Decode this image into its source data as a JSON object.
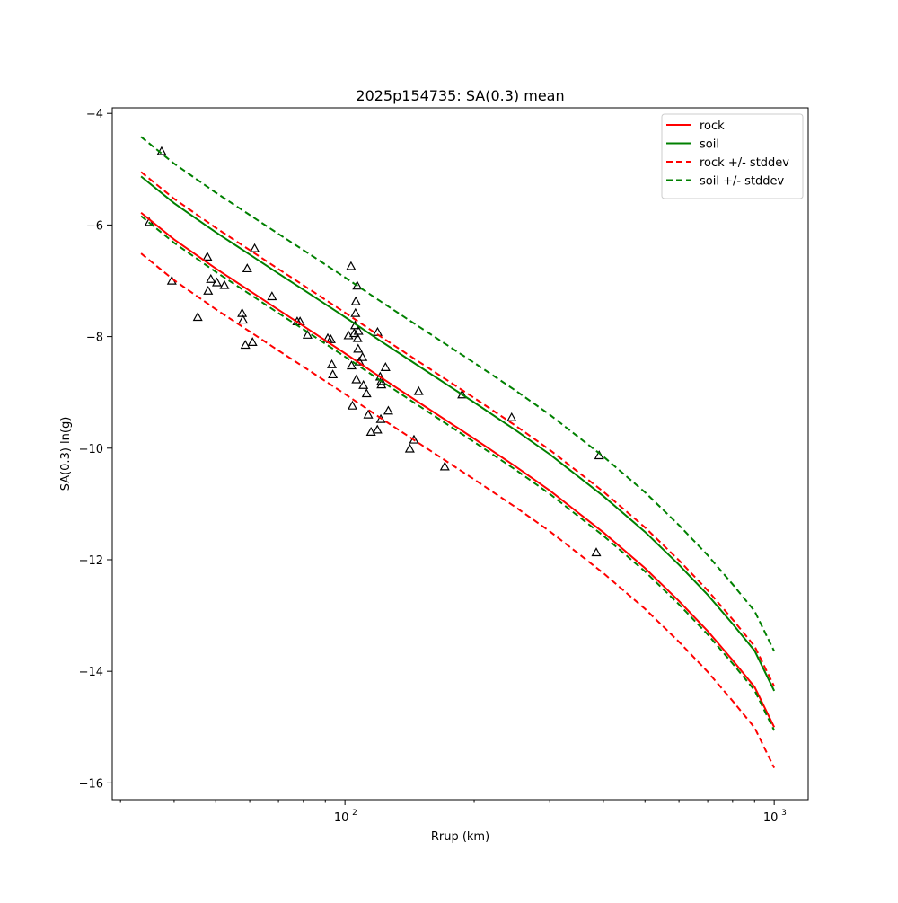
{
  "chart_data": {
    "type": "line",
    "title": "2025p154735: SA(0.3) mean",
    "xlabel": "Rrup (km)",
    "ylabel": "SA(0.3) ln(g)",
    "xscale": "log",
    "xlim": [
      28.7,
      1200
    ],
    "ylim": [
      -16.3,
      -3.9
    ],
    "x_ticks": [
      {
        "value": 100,
        "base": "10",
        "exp": "2"
      },
      {
        "value": 1000,
        "base": "10",
        "exp": "3"
      }
    ],
    "y_ticks": [
      -4,
      -6,
      -8,
      -10,
      -12,
      -14,
      -16
    ],
    "grid": false,
    "legend": "top-right",
    "series": [
      {
        "name": "rock",
        "color": "#ff0000",
        "style": "solid",
        "x": [
          33.5,
          40,
          50,
          60,
          70,
          80,
          100,
          120,
          150,
          200,
          250,
          300,
          400,
          500,
          600,
          700,
          800,
          900,
          1000
        ],
        "y": [
          -5.78,
          -6.26,
          -6.78,
          -7.18,
          -7.52,
          -7.81,
          -8.3,
          -8.71,
          -9.2,
          -9.83,
          -10.33,
          -10.76,
          -11.51,
          -12.15,
          -12.74,
          -13.28,
          -13.8,
          -14.28,
          -15.0
        ]
      },
      {
        "name": "soil",
        "color": "#008000",
        "style": "solid",
        "x": [
          33.5,
          40,
          50,
          60,
          70,
          80,
          100,
          120,
          150,
          200,
          250,
          300,
          400,
          500,
          600,
          700,
          800,
          900,
          1000
        ],
        "y": [
          -5.13,
          -5.61,
          -6.13,
          -6.53,
          -6.87,
          -7.16,
          -7.65,
          -8.06,
          -8.55,
          -9.18,
          -9.68,
          -10.11,
          -10.86,
          -11.5,
          -12.09,
          -12.63,
          -13.15,
          -13.63,
          -14.35
        ]
      },
      {
        "name": "rock +/- stddev",
        "color": "#ff0000",
        "style": "dashed",
        "x": [
          33.5,
          40,
          50,
          60,
          70,
          80,
          100,
          120,
          150,
          200,
          250,
          300,
          400,
          500,
          600,
          700,
          800,
          900,
          1000
        ],
        "y": [
          -5.05,
          -5.53,
          -6.05,
          -6.45,
          -6.79,
          -7.08,
          -7.57,
          -7.98,
          -8.47,
          -9.1,
          -9.6,
          -10.03,
          -10.78,
          -11.42,
          -12.01,
          -12.55,
          -13.07,
          -13.55,
          -14.27
        ]
      },
      {
        "name": "",
        "color": "#ff0000",
        "style": "dashed",
        "x": [
          33.5,
          40,
          50,
          60,
          70,
          80,
          100,
          120,
          150,
          200,
          250,
          300,
          400,
          500,
          600,
          700,
          800,
          900,
          1000
        ],
        "y": [
          -6.51,
          -6.99,
          -7.51,
          -7.91,
          -8.25,
          -8.54,
          -9.03,
          -9.44,
          -9.93,
          -10.56,
          -11.06,
          -11.49,
          -12.24,
          -12.88,
          -13.47,
          -14.01,
          -14.53,
          -15.01,
          -15.73
        ]
      },
      {
        "name": "soil +/- stddev",
        "color": "#008000",
        "style": "dashed",
        "x": [
          33.5,
          40,
          50,
          60,
          70,
          80,
          100,
          120,
          150,
          200,
          250,
          300,
          400,
          500,
          600,
          700,
          800,
          900,
          1000
        ],
        "y": [
          -4.42,
          -4.9,
          -5.42,
          -5.82,
          -6.16,
          -6.45,
          -6.94,
          -7.35,
          -7.84,
          -8.47,
          -8.97,
          -9.4,
          -10.15,
          -10.79,
          -11.38,
          -11.92,
          -12.44,
          -12.92,
          -13.64
        ]
      },
      {
        "name": "",
        "color": "#008000",
        "style": "dashed",
        "x": [
          33.5,
          40,
          50,
          60,
          70,
          80,
          100,
          120,
          150,
          200,
          250,
          300,
          400,
          500,
          600,
          700,
          800,
          900,
          1000
        ],
        "y": [
          -5.84,
          -6.32,
          -6.84,
          -7.24,
          -7.58,
          -7.87,
          -8.36,
          -8.77,
          -9.26,
          -9.89,
          -10.39,
          -10.82,
          -11.57,
          -12.21,
          -12.8,
          -13.34,
          -13.86,
          -14.34,
          -15.06
        ]
      }
    ],
    "observations": {
      "marker": "triangle",
      "color": "#000000",
      "points": [
        [
          37.4,
          -4.68
        ],
        [
          35.0,
          -5.95
        ],
        [
          39.5,
          -7.0
        ],
        [
          45.4,
          -7.65
        ],
        [
          47.8,
          -6.57
        ],
        [
          48.0,
          -7.18
        ],
        [
          48.7,
          -6.97
        ],
        [
          50.3,
          -7.03
        ],
        [
          52.4,
          -7.08
        ],
        [
          57.6,
          -7.58
        ],
        [
          57.9,
          -7.7
        ],
        [
          58.6,
          -8.15
        ],
        [
          59.2,
          -6.78
        ],
        [
          60.9,
          -8.1
        ],
        [
          61.6,
          -6.42
        ],
        [
          67.6,
          -7.28
        ],
        [
          77.4,
          -7.73
        ],
        [
          78.6,
          -7.73
        ],
        [
          81.8,
          -7.97
        ],
        [
          91.2,
          -8.03
        ],
        [
          92.7,
          -8.05
        ],
        [
          93.2,
          -8.5
        ],
        [
          93.7,
          -8.68
        ],
        [
          101.9,
          -7.98
        ],
        [
          103.3,
          -6.74
        ],
        [
          103.6,
          -8.52
        ],
        [
          104.1,
          -9.24
        ],
        [
          105.1,
          -7.94
        ],
        [
          105.6,
          -7.8
        ],
        [
          105.8,
          -7.58
        ],
        [
          106.0,
          -7.37
        ],
        [
          106.3,
          -8.77
        ],
        [
          106.8,
          -7.09
        ],
        [
          107.0,
          -8.03
        ],
        [
          107.3,
          -8.22
        ],
        [
          107.5,
          -7.9
        ],
        [
          108.0,
          -8.45
        ],
        [
          109.9,
          -8.37
        ],
        [
          110.4,
          -8.87
        ],
        [
          112.3,
          -9.02
        ],
        [
          113.3,
          -9.4
        ],
        [
          115.0,
          -9.71
        ],
        [
          119.0,
          -9.67
        ],
        [
          119.1,
          -7.92
        ],
        [
          120.8,
          -8.72
        ],
        [
          121.2,
          -9.48
        ],
        [
          121.5,
          -8.8
        ],
        [
          121.6,
          -8.86
        ],
        [
          124.3,
          -8.55
        ],
        [
          126.2,
          -9.33
        ],
        [
          141.6,
          -10.01
        ],
        [
          144.8,
          -9.85
        ],
        [
          148.5,
          -8.98
        ],
        [
          170.8,
          -10.33
        ],
        [
          187.5,
          -9.04
        ],
        [
          244.5,
          -9.45
        ],
        [
          385.0,
          -11.87
        ],
        [
          391.0,
          -10.13
        ]
      ]
    }
  }
}
